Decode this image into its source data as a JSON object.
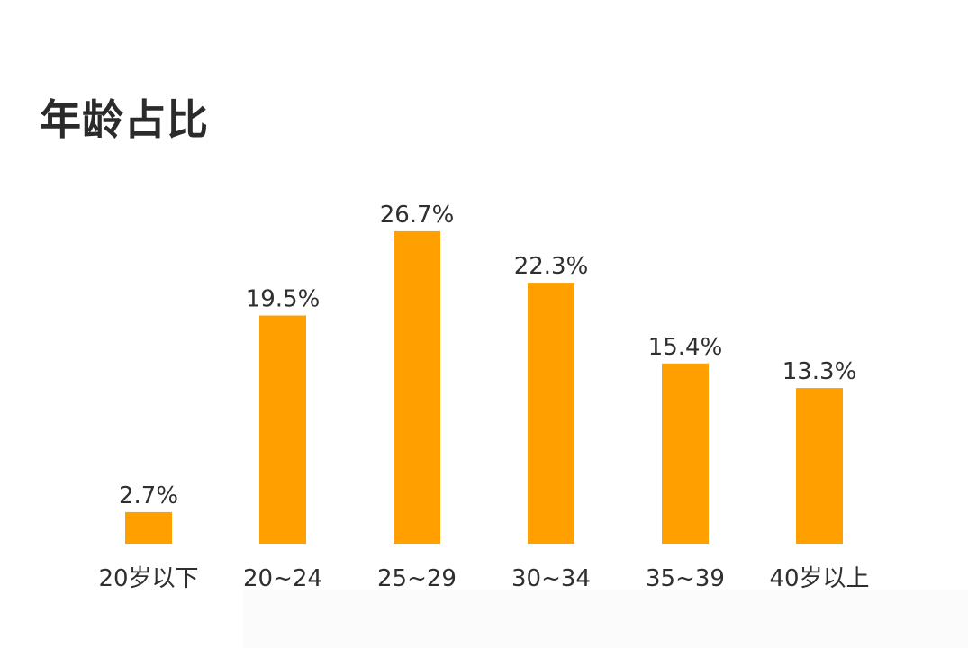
{
  "chart_data": {
    "type": "bar",
    "title": "年龄占比",
    "categories": [
      "20岁以下",
      "20~24",
      "25~29",
      "30~34",
      "35~39",
      "40岁以上"
    ],
    "values": [
      2.7,
      19.5,
      26.7,
      22.3,
      15.4,
      13.3
    ],
    "value_labels": [
      "2.7%",
      "19.5%",
      "26.7%",
      "22.3%",
      "15.4%",
      "13.3%"
    ],
    "unit": "%",
    "bar_color": "#FFA000",
    "grid": false,
    "legend": "none"
  }
}
